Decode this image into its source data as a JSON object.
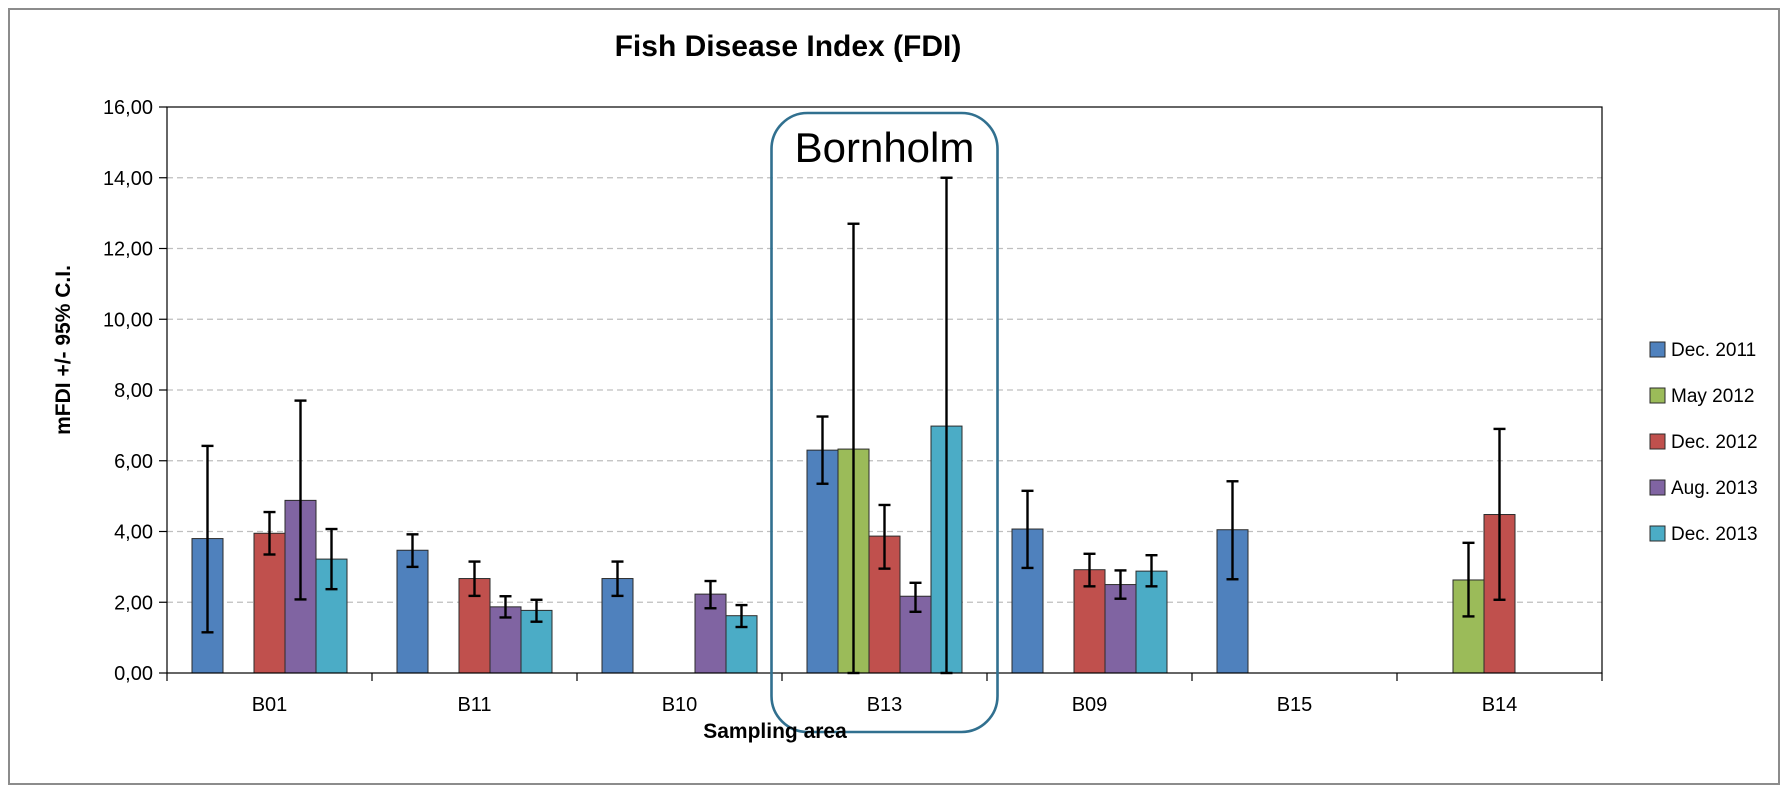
{
  "chart_data": {
    "type": "bar",
    "title": "Fish Disease Index (FDI)",
    "xlabel": "Sampling area",
    "ylabel": "mFDI +/- 95% C.I.",
    "ylim": [
      0,
      16
    ],
    "yticks": [
      "0,00",
      "2,00",
      "4,00",
      "6,00",
      "8,00",
      "10,00",
      "12,00",
      "14,00",
      "16,00"
    ],
    "grid": "horizontal dashed",
    "legend_position": "right",
    "categories": [
      "B01",
      "B11",
      "B10",
      "B13",
      "B09",
      "B15",
      "B14"
    ],
    "series": [
      {
        "name": "Dec. 2011",
        "color": "#4F81BD",
        "values": [
          3.8,
          3.47,
          2.67,
          6.3,
          4.07,
          4.05,
          null
        ],
        "ci_low": [
          1.15,
          3.0,
          2.18,
          5.35,
          2.97,
          2.65,
          null
        ],
        "ci_high": [
          6.42,
          3.92,
          3.15,
          7.25,
          5.15,
          5.42,
          null
        ]
      },
      {
        "name": "May 2012",
        "color": "#9BBB59",
        "values": [
          null,
          null,
          null,
          6.33,
          null,
          null,
          2.63
        ],
        "ci_low": [
          null,
          null,
          null,
          0,
          null,
          null,
          1.6
        ],
        "ci_high": [
          null,
          null,
          null,
          12.7,
          null,
          null,
          3.68
        ]
      },
      {
        "name": "Dec. 2012",
        "color": "#C0504D",
        "values": [
          3.95,
          2.67,
          null,
          3.87,
          2.92,
          null,
          4.48
        ],
        "ci_low": [
          3.35,
          2.18,
          null,
          2.95,
          2.45,
          null,
          2.07
        ],
        "ci_high": [
          4.55,
          3.15,
          null,
          4.75,
          3.37,
          null,
          6.9
        ]
      },
      {
        "name": "Aug. 2013",
        "color": "#8064A2",
        "values": [
          4.88,
          1.87,
          2.23,
          2.17,
          2.5,
          null,
          null
        ],
        "ci_low": [
          2.08,
          1.57,
          1.83,
          1.73,
          2.1,
          null,
          null
        ],
        "ci_high": [
          7.7,
          2.17,
          2.6,
          2.55,
          2.9,
          null,
          null
        ]
      },
      {
        "name": "Dec. 2013",
        "color": "#4BACC6",
        "values": [
          3.22,
          1.77,
          1.62,
          6.98,
          2.88,
          null,
          null
        ],
        "ci_low": [
          2.37,
          1.45,
          1.3,
          0,
          2.45,
          null,
          null
        ],
        "ci_high": [
          4.07,
          2.07,
          1.92,
          14.0,
          3.33,
          null,
          null
        ]
      }
    ],
    "annotations": [
      {
        "text": "Bornholm",
        "category": "B13"
      }
    ]
  }
}
